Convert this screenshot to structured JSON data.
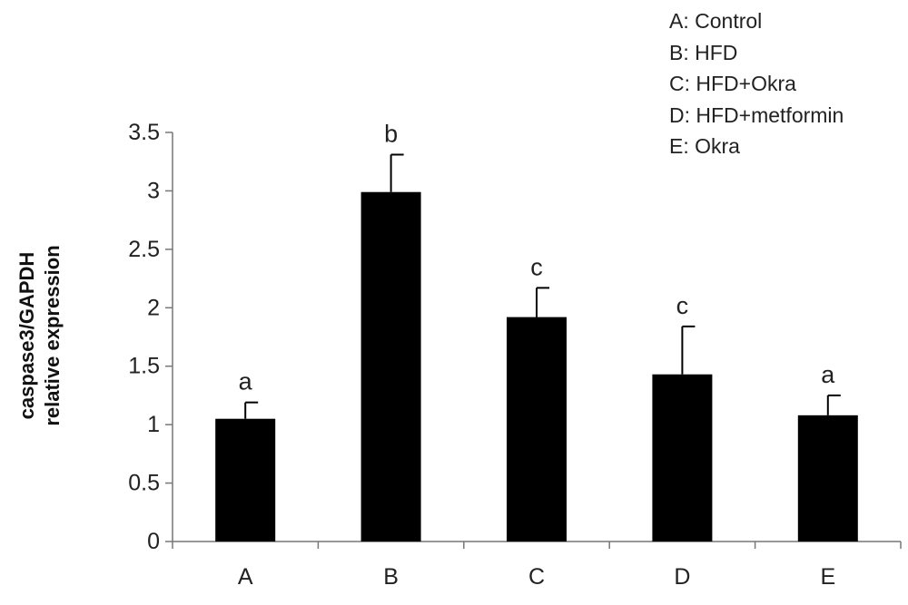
{
  "chart_data": {
    "type": "bar",
    "categories": [
      "A",
      "B",
      "C",
      "D",
      "E"
    ],
    "values": [
      1.05,
      2.99,
      1.92,
      1.43,
      1.08
    ],
    "errors": [
      0.14,
      0.32,
      0.25,
      0.41,
      0.17
    ],
    "significance_letters": [
      "a",
      "b",
      "c",
      "c",
      "a"
    ],
    "ylabel_lines": [
      "caspase3/GAPDH",
      "relative expression"
    ],
    "xlabel": "",
    "ylim": [
      0,
      3.5
    ],
    "yticks": [
      0,
      0.5,
      1,
      1.5,
      2,
      2.5,
      3,
      3.5
    ],
    "ytick_labels": [
      "0",
      "0.5",
      "1",
      "1.5",
      "2",
      "2.5",
      "3",
      "3.5"
    ],
    "legend": [
      "A: Control",
      "B: HFD",
      "C: HFD+Okra",
      "D: HFD+metformin",
      "E: Okra"
    ],
    "legend_position": "top-right",
    "grid": false,
    "bar_color": "#000000",
    "axis_color": "#777777"
  }
}
